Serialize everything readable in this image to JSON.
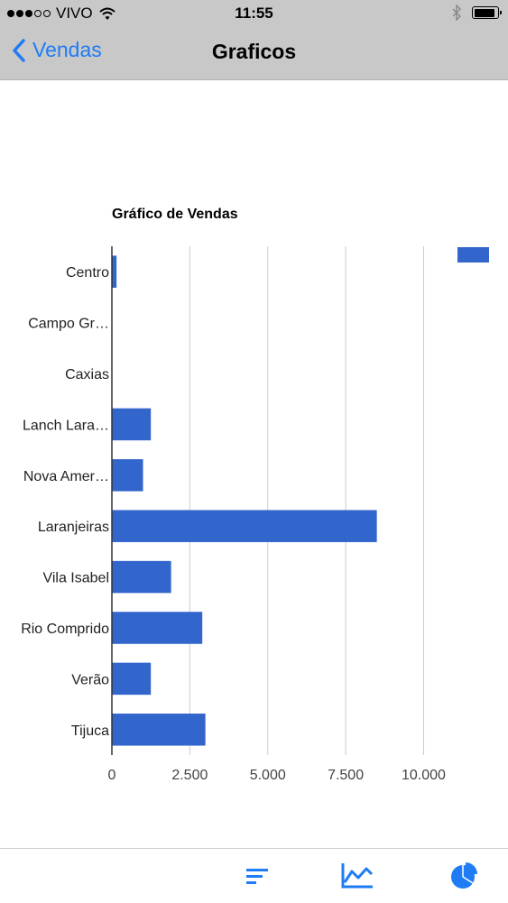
{
  "status_bar": {
    "carrier": "VIVO",
    "time": "11:55"
  },
  "nav": {
    "back_label": "Vendas",
    "title": "Graficos"
  },
  "colors": {
    "accent": "#1f7cf5",
    "bar": "#3366cc"
  },
  "chart_data": {
    "type": "bar",
    "orientation": "horizontal",
    "title": "Gráfico de Vendas",
    "categories": [
      "Centro",
      "Campo Gr…",
      "Caxias",
      "Lanch Lara…",
      "Nova Amer…",
      "Laranjeiras",
      "Vila Isabel",
      "Rio Comprido",
      "Verão",
      "Tijuca"
    ],
    "values": [
      150,
      0,
      0,
      1250,
      1000,
      8500,
      1900,
      2900,
      1250,
      3000
    ],
    "xlim": [
      0,
      11000
    ],
    "xticks": [
      0,
      2500,
      5000,
      7500,
      10000
    ],
    "xtick_labels": [
      "0",
      "2.500",
      "5.000",
      "7.500",
      "10.000"
    ],
    "grid": true,
    "legend": "top-right"
  },
  "tab_bar": {
    "icons": [
      "sort-icon",
      "line-chart-icon",
      "pie-chart-icon"
    ]
  }
}
